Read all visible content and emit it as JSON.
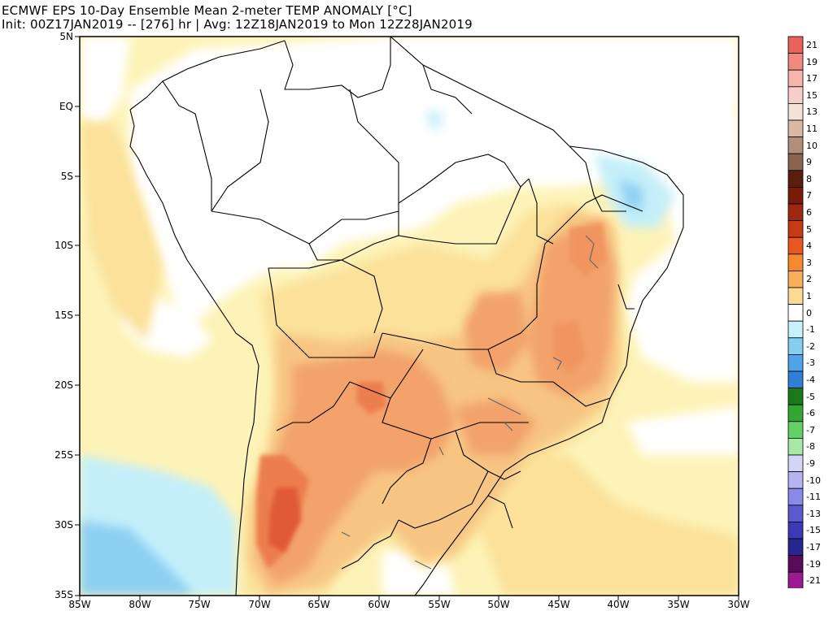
{
  "title_line1": "ECMWF EPS 10-Day Ensemble Mean 2-meter TEMP ANOMALY [°C]",
  "title_line2": "Init: 00Z17JAN2019 -- [276] hr | Avg: 12Z18JAN2019 to Mon 12Z28JAN2019",
  "lat_labels": [
    "5N",
    "EQ",
    "5S",
    "10S",
    "15S",
    "20S",
    "25S",
    "30S",
    "35S"
  ],
  "lon_labels": [
    "85W",
    "80W",
    "75W",
    "70W",
    "65W",
    "60W",
    "55W",
    "50W",
    "45W",
    "40W",
    "35W",
    "30W"
  ],
  "colorbar": {
    "labels": [
      "21",
      "19",
      "17",
      "15",
      "13",
      "11",
      "10",
      "9",
      "8",
      "7",
      "6",
      "5",
      "4",
      "3",
      "2",
      "1",
      "0",
      "-1",
      "-2",
      "-3",
      "-4",
      "-5",
      "-6",
      "-7",
      "-8",
      "-9",
      "-10",
      "-11",
      "-13",
      "-15",
      "-17",
      "-19",
      "-21"
    ],
    "colors": [
      "#e8625a",
      "#f08a80",
      "#f6b4ac",
      "#f7cfc8",
      "#f3e3d6",
      "#d7b9a6",
      "#b08e7a",
      "#8a6450",
      "#6b3c2a",
      "#5a1e0c",
      "#7a1a0a",
      "#9c2810",
      "#c63a14",
      "#e8581e",
      "#f5892e",
      "#f8ae5c",
      "#fcdb94",
      "#ffffff",
      "#c8f2fb",
      "#84cef2",
      "#4fa4e8",
      "#2f7fd8",
      "#1a7a1a",
      "#33a633",
      "#62d062",
      "#a6eaa6",
      "#d4d4f8",
      "#b4b4f0",
      "#8a8ae8",
      "#5a5ad0",
      "#3a3ab4",
      "#262690",
      "#5a0a5a",
      "#9a1a90",
      "#d43ac8",
      "#ee88e6",
      "#fad0f6"
    ]
  },
  "legend_label_colors_note": "",
  "colors": {
    "ocean_pos_light": "#fdf3b8",
    "pos_1": "#fbe19a",
    "pos_2": "#f7c584",
    "pos_3": "#f2a26a",
    "pos_4": "#ec7e4e",
    "pos_5": "#e05a36",
    "neg_1": "#c4eff9",
    "neg_2": "#8ed0f2"
  }
}
